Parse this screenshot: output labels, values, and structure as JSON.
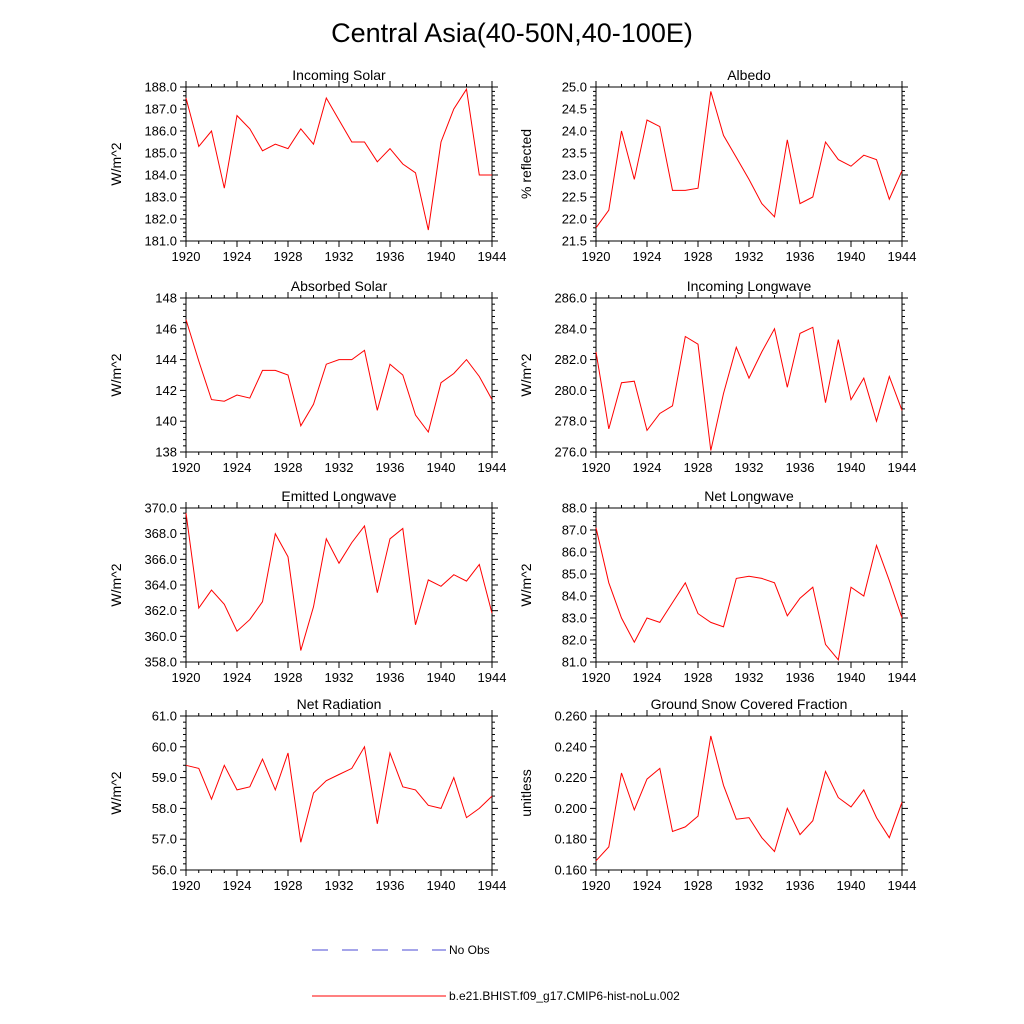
{
  "figure": {
    "title": "Central Asia(40-50N,40-100E)",
    "series_color": "#ff0000",
    "obs_color": "#4b4bd6",
    "legend": [
      {
        "label": "No Obs",
        "style": "dashed",
        "color": "#4b4bd6"
      },
      {
        "label": "b.e21.BHIST.f09_g17.CMIP6-hist-noLu.002",
        "style": "solid",
        "color": "#ff0000"
      }
    ]
  },
  "chart_data": [
    {
      "type": "line",
      "title": "Incoming Solar",
      "ylabel": "W/m^2",
      "xlim": [
        1920,
        1944
      ],
      "ylim": [
        181.0,
        188.0
      ],
      "xticks": [
        "1920",
        "1924",
        "1928",
        "1932",
        "1936",
        "1940",
        "1944"
      ],
      "yticks": [
        "181.0",
        "182.0",
        "183.0",
        "184.0",
        "185.0",
        "186.0",
        "187.0",
        "188.0"
      ],
      "x": [
        1920,
        1921,
        1922,
        1923,
        1924,
        1925,
        1926,
        1927,
        1928,
        1929,
        1930,
        1931,
        1932,
        1933,
        1934,
        1935,
        1936,
        1937,
        1938,
        1939,
        1940,
        1941,
        1942,
        1943,
        1944
      ],
      "series": [
        {
          "values": [
            187.5,
            185.3,
            186.0,
            183.4,
            186.7,
            186.1,
            185.1,
            185.4,
            185.2,
            186.1,
            185.4,
            187.5,
            186.5,
            185.5,
            185.5,
            184.6,
            185.2,
            184.5,
            184.1,
            181.5,
            185.5,
            187.0,
            187.9,
            184.0,
            184.0
          ]
        }
      ]
    },
    {
      "type": "line",
      "title": "Albedo",
      "ylabel": "% reflected",
      "xlim": [
        1920,
        1944
      ],
      "ylim": [
        21.5,
        25.0
      ],
      "xticks": [
        "1920",
        "1924",
        "1928",
        "1932",
        "1936",
        "1940",
        "1944"
      ],
      "yticks": [
        "21.5",
        "22.0",
        "22.5",
        "23.0",
        "23.5",
        "24.0",
        "24.5",
        "25.0"
      ],
      "x": [
        1920,
        1921,
        1922,
        1923,
        1924,
        1925,
        1926,
        1927,
        1928,
        1929,
        1930,
        1931,
        1932,
        1933,
        1934,
        1935,
        1936,
        1937,
        1938,
        1939,
        1940,
        1941,
        1942,
        1943,
        1944
      ],
      "series": [
        {
          "values": [
            21.8,
            22.2,
            24.0,
            22.9,
            24.25,
            24.1,
            22.65,
            22.65,
            22.7,
            24.9,
            23.9,
            23.4,
            22.9,
            22.35,
            22.05,
            23.8,
            22.35,
            22.5,
            23.75,
            23.35,
            23.2,
            23.45,
            23.35,
            22.45,
            23.1
          ]
        }
      ]
    },
    {
      "type": "line",
      "title": "Absorbed Solar",
      "ylabel": "W/m^2",
      "xlim": [
        1920,
        1944
      ],
      "ylim": [
        138,
        148
      ],
      "xticks": [
        "1920",
        "1924",
        "1928",
        "1932",
        "1936",
        "1940",
        "1944"
      ],
      "yticks": [
        "138",
        "140",
        "142",
        "144",
        "146",
        "148"
      ],
      "x": [
        1920,
        1921,
        1922,
        1923,
        1924,
        1925,
        1926,
        1927,
        1928,
        1929,
        1930,
        1931,
        1932,
        1933,
        1934,
        1935,
        1936,
        1937,
        1938,
        1939,
        1940,
        1941,
        1942,
        1943,
        1944
      ],
      "series": [
        {
          "values": [
            146.6,
            143.9,
            141.4,
            141.3,
            141.7,
            141.5,
            143.3,
            143.3,
            143.0,
            139.7,
            141.1,
            143.7,
            144.0,
            144.0,
            144.6,
            140.7,
            143.7,
            143.0,
            140.4,
            139.3,
            142.5,
            143.1,
            144.0,
            142.9,
            141.4
          ]
        }
      ]
    },
    {
      "type": "line",
      "title": "Incoming Longwave",
      "ylabel": "W/m^2",
      "xlim": [
        1920,
        1944
      ],
      "ylim": [
        276.0,
        286.0
      ],
      "xticks": [
        "1920",
        "1924",
        "1928",
        "1932",
        "1936",
        "1940",
        "1944"
      ],
      "yticks": [
        "276.0",
        "278.0",
        "280.0",
        "282.0",
        "284.0",
        "286.0"
      ],
      "x": [
        1920,
        1921,
        1922,
        1923,
        1924,
        1925,
        1926,
        1927,
        1928,
        1929,
        1930,
        1931,
        1932,
        1933,
        1934,
        1935,
        1936,
        1937,
        1938,
        1939,
        1940,
        1941,
        1942,
        1943,
        1944
      ],
      "series": [
        {
          "values": [
            282.5,
            277.5,
            280.5,
            280.6,
            277.4,
            278.5,
            279.0,
            283.5,
            283.0,
            276.1,
            279.8,
            282.8,
            280.8,
            282.5,
            284.0,
            280.2,
            283.7,
            284.1,
            279.2,
            283.3,
            279.4,
            280.8,
            278.0,
            280.9,
            278.7
          ]
        }
      ]
    },
    {
      "type": "line",
      "title": "Emitted Longwave",
      "ylabel": "W/m^2",
      "xlim": [
        1920,
        1944
      ],
      "ylim": [
        358.0,
        370.0
      ],
      "xticks": [
        "1920",
        "1924",
        "1928",
        "1932",
        "1936",
        "1940",
        "1944"
      ],
      "yticks": [
        "358.0",
        "360.0",
        "362.0",
        "364.0",
        "366.0",
        "368.0",
        "370.0"
      ],
      "x": [
        1920,
        1921,
        1922,
        1923,
        1924,
        1925,
        1926,
        1927,
        1928,
        1929,
        1930,
        1931,
        1932,
        1933,
        1934,
        1935,
        1936,
        1937,
        1938,
        1939,
        1940,
        1941,
        1942,
        1943,
        1944
      ],
      "series": [
        {
          "values": [
            369.6,
            362.2,
            363.6,
            362.5,
            360.4,
            361.3,
            362.7,
            368.0,
            366.2,
            358.9,
            362.3,
            367.6,
            365.7,
            367.3,
            368.6,
            363.4,
            367.6,
            368.4,
            360.9,
            364.4,
            363.9,
            364.8,
            364.3,
            365.6,
            361.8
          ]
        }
      ]
    },
    {
      "type": "line",
      "title": "Net Longwave",
      "ylabel": "W/m^2",
      "xlim": [
        1920,
        1944
      ],
      "ylim": [
        81.0,
        88.0
      ],
      "xticks": [
        "1920",
        "1924",
        "1928",
        "1932",
        "1936",
        "1940",
        "1944"
      ],
      "yticks": [
        "81.0",
        "82.0",
        "83.0",
        "84.0",
        "85.0",
        "86.0",
        "87.0",
        "88.0"
      ],
      "x": [
        1920,
        1921,
        1922,
        1923,
        1924,
        1925,
        1926,
        1927,
        1928,
        1929,
        1930,
        1931,
        1932,
        1933,
        1934,
        1935,
        1936,
        1937,
        1938,
        1939,
        1940,
        1941,
        1942,
        1943,
        1944
      ],
      "series": [
        {
          "values": [
            87.1,
            84.6,
            83.0,
            81.9,
            83.0,
            82.8,
            83.7,
            84.6,
            83.2,
            82.8,
            82.6,
            84.8,
            84.9,
            84.8,
            84.6,
            83.1,
            83.9,
            84.4,
            81.8,
            81.1,
            84.4,
            84.0,
            86.3,
            84.7,
            83.0
          ]
        }
      ]
    },
    {
      "type": "line",
      "title": "Net Radiation",
      "ylabel": "W/m^2",
      "xlim": [
        1920,
        1944
      ],
      "ylim": [
        56.0,
        61.0
      ],
      "xticks": [
        "1920",
        "1924",
        "1928",
        "1932",
        "1936",
        "1940",
        "1944"
      ],
      "yticks": [
        "56.0",
        "57.0",
        "58.0",
        "59.0",
        "60.0",
        "61.0"
      ],
      "x": [
        1920,
        1921,
        1922,
        1923,
        1924,
        1925,
        1926,
        1927,
        1928,
        1929,
        1930,
        1931,
        1932,
        1933,
        1934,
        1935,
        1936,
        1937,
        1938,
        1939,
        1940,
        1941,
        1942,
        1943,
        1944
      ],
      "series": [
        {
          "values": [
            59.4,
            59.3,
            58.3,
            59.4,
            58.6,
            58.7,
            59.6,
            58.6,
            59.8,
            56.9,
            58.5,
            58.9,
            59.1,
            59.3,
            60.0,
            57.5,
            59.8,
            58.7,
            58.6,
            58.1,
            58.0,
            59.0,
            57.7,
            58.0,
            58.4
          ]
        }
      ]
    },
    {
      "type": "line",
      "title": "Ground Snow Covered Fraction",
      "ylabel": "unitless",
      "xlim": [
        1920,
        1944
      ],
      "ylim": [
        0.16,
        0.26
      ],
      "xticks": [
        "1920",
        "1924",
        "1928",
        "1932",
        "1936",
        "1940",
        "1944"
      ],
      "yticks": [
        "0.160",
        "0.180",
        "0.200",
        "0.220",
        "0.240",
        "0.260"
      ],
      "x": [
        1920,
        1921,
        1922,
        1923,
        1924,
        1925,
        1926,
        1927,
        1928,
        1929,
        1930,
        1931,
        1932,
        1933,
        1934,
        1935,
        1936,
        1937,
        1938,
        1939,
        1940,
        1941,
        1942,
        1943,
        1944
      ],
      "series": [
        {
          "values": [
            0.166,
            0.175,
            0.223,
            0.199,
            0.219,
            0.226,
            0.185,
            0.188,
            0.195,
            0.247,
            0.215,
            0.193,
            0.194,
            0.181,
            0.172,
            0.2,
            0.183,
            0.192,
            0.224,
            0.207,
            0.201,
            0.212,
            0.194,
            0.181,
            0.204
          ]
        }
      ]
    }
  ]
}
